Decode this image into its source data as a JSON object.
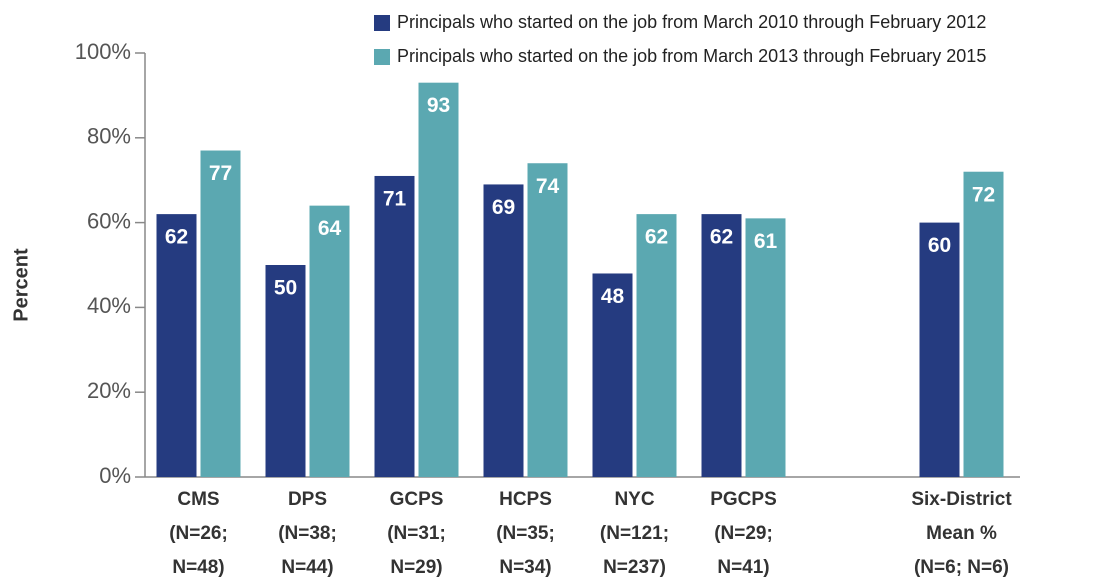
{
  "chart_data": {
    "type": "bar",
    "y_label": "Percent",
    "categories": [
      "CMS\n(N=26;\nN=48)",
      "DPS\n(N=38;\nN=44)",
      "GCPS\n(N=31;\nN=29)",
      "HCPS\n(N=35;\nN=34)",
      "NYC\n(N=121;\nN=237)",
      "PGCPS\n(N=29;\nN=41)",
      null,
      "Six-District\nMean %\n(N=6; N=6)"
    ],
    "series": [
      {
        "name": "Principals who started on the job from March 2010 through February 2012",
        "color": "#253b80",
        "values": [
          62,
          50,
          71,
          69,
          48,
          62,
          null,
          60
        ]
      },
      {
        "name": "Principals who started on the job from March 2013 through February 2015",
        "color": "#5ba8b1",
        "values": [
          77,
          64,
          93,
          74,
          62,
          61,
          null,
          72
        ]
      }
    ],
    "ylim": [
      0,
      100
    ],
    "yticks": [
      {
        "value": 0,
        "label": "0%"
      },
      {
        "value": 20,
        "label": "20%"
      },
      {
        "value": 40,
        "label": "40%"
      },
      {
        "value": 60,
        "label": "60%"
      },
      {
        "value": 80,
        "label": "80%"
      },
      {
        "value": 100,
        "label": "100%"
      }
    ],
    "grid": false,
    "legend": "top-right"
  }
}
